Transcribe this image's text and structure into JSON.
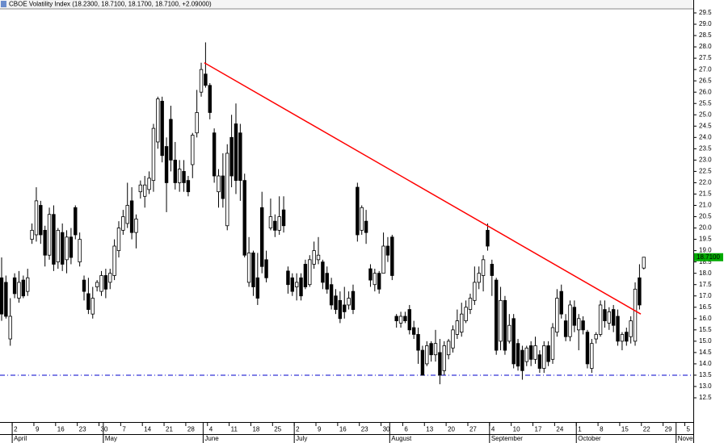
{
  "chart_data": {
    "type": "candlestick",
    "title": "CBOE Volatility Index (18.2300, 18.7100, 18.1700, 18.7100, +2.09000)",
    "open": [
      17.8,
      17.6,
      15.1,
      17.8,
      16.9,
      17.7,
      17.2,
      19.5,
      19.7,
      21.0,
      19.9,
      18.8,
      20.6,
      18.5,
      19.8,
      18.6,
      19.6,
      20.9,
      18.5,
      17.7,
      17.1,
      16.2,
      17.4,
      17.2,
      17.9,
      17.6,
      17.9,
      19.0,
      19.9,
      20.2,
      21.2,
      19.8,
      21.6,
      21.4,
      21.7,
      22.1,
      23.8,
      25.6,
      23.6,
      24.8,
      23.0,
      22.0,
      22.5,
      22.1,
      22.8,
      24.2,
      26.0,
      26.8,
      26.3,
      24.2,
      21.6,
      22.3,
      20.1,
      24.0,
      24.6,
      24.2,
      22.1,
      17.6,
      18.9,
      17.8,
      20.9,
      18.6,
      20.0,
      20.3,
      19.9,
      20.8,
      18.1,
      17.8,
      17.4,
      17.8,
      18.4,
      17.5,
      18.4,
      18.6,
      18.5,
      18.0,
      17.5,
      17.0,
      16.8,
      16.6,
      16.6,
      17.2,
      21.8,
      19.9,
      20.3,
      18.2,
      17.5,
      18.0,
      18.0,
      19.2,
      19.6,
      16.1,
      15.8,
      16.1,
      16.4,
      15.6,
      15.3,
      14.6,
      14.0,
      14.9,
      14.4,
      14.5,
      13.7,
      14.4,
      14.7,
      15.3,
      15.4,
      15.9,
      16.4,
      16.8,
      17.6,
      17.9,
      19.9,
      18.4,
      17.7,
      15.0,
      16.8,
      15.0,
      16.0,
      14.9,
      14.6,
      14.1,
      14.8,
      14.2,
      14.4,
      13.8,
      14.8,
      14.2,
      15.4,
      17.2,
      15.9,
      15.2,
      16.5,
      15.5,
      15.9,
      15.4,
      13.8,
      15.1,
      15.3,
      16.4,
      15.8,
      16.4,
      16.1,
      15.0,
      15.4,
      15.2,
      15.0,
      17.8,
      18.23
    ],
    "high": [
      18.7,
      17.9,
      16.9,
      18.0,
      18.1,
      17.9,
      18.2,
      20.2,
      21.8,
      21.2,
      20.1,
      20.9,
      21.0,
      20.0,
      20.2,
      19.9,
      20.0,
      21.0,
      19.8,
      17.9,
      17.8,
      17.4,
      17.7,
      18.1,
      18.2,
      18.2,
      19.5,
      20.3,
      20.8,
      22.0,
      21.8,
      20.6,
      22.1,
      22.3,
      22.5,
      24.6,
      25.8,
      25.8,
      24.0,
      25.4,
      23.8,
      23.0,
      23.0,
      22.3,
      24.2,
      26.1,
      27.3,
      28.2,
      26.4,
      24.4,
      22.6,
      23.3,
      23.7,
      25.0,
      25.5,
      24.6,
      22.4,
      19.6,
      19.0,
      18.9,
      21.6,
      19.0,
      21.3,
      20.6,
      21.4,
      21.4,
      18.3,
      18.0,
      18.0,
      18.0,
      18.6,
      18.8,
      19.4,
      19.6,
      18.6,
      18.3,
      17.8,
      17.3,
      17.2,
      17.4,
      17.2,
      17.5,
      22.0,
      21.0,
      20.8,
      18.4,
      18.2,
      18.1,
      19.8,
      19.6,
      19.7,
      16.2,
      16.3,
      16.3,
      16.6,
      15.9,
      15.6,
      14.8,
      15.0,
      15.0,
      15.5,
      15.1,
      15.0,
      15.1,
      15.7,
      16.4,
      16.7,
      16.8,
      17.1,
      18.3,
      18.3,
      18.8,
      20.2,
      18.6,
      17.8,
      17.4,
      17.0,
      16.2,
      16.2,
      15.1,
      14.8,
      14.8,
      15.0,
      15.2,
      14.6,
      15.0,
      15.0,
      15.8,
      17.3,
      17.5,
      16.2,
      16.8,
      16.8,
      16.2,
      16.1,
      15.5,
      15.1,
      15.4,
      16.8,
      16.8,
      16.5,
      16.6,
      16.4,
      15.4,
      15.6,
      16.1,
      17.6,
      18.4,
      18.71
    ],
    "low": [
      15.9,
      16.0,
      14.8,
      16.9,
      16.7,
      16.9,
      17.0,
      19.3,
      19.4,
      19.3,
      18.3,
      18.6,
      18.1,
      18.2,
      18.1,
      18.0,
      18.4,
      19.5,
      18.3,
      16.8,
      16.2,
      16.0,
      17.2,
      17.0,
      16.9,
      17.3,
      17.7,
      18.7,
      19.7,
      20.0,
      19.5,
      19.1,
      21.3,
      20.9,
      21.5,
      21.6,
      23.5,
      22.9,
      20.7,
      22.5,
      21.7,
      21.6,
      21.6,
      21.4,
      22.2,
      24.0,
      25.8,
      26.2,
      24.8,
      22.0,
      20.9,
      20.9,
      19.9,
      21.8,
      21.5,
      21.2,
      18.7,
      17.4,
      17.0,
      16.6,
      18.0,
      17.6,
      19.9,
      19.6,
      19.7,
      19.8,
      17.1,
      17.0,
      16.8,
      16.8,
      17.3,
      17.4,
      18.2,
      18.4,
      17.3,
      17.1,
      16.4,
      16.2,
      15.8,
      16.0,
      16.4,
      16.2,
      19.4,
      19.7,
      19.3,
      17.4,
      17.2,
      17.1,
      18.0,
      18.5,
      17.7,
      15.6,
      15.6,
      15.8,
      15.3,
      15.1,
      14.0,
      13.5,
      13.9,
      14.1,
      14.1,
      13.1,
      13.5,
      14.2,
      14.5,
      15.1,
      15.2,
      15.8,
      16.2,
      16.6,
      17.3,
      17.2,
      19.0,
      17.0,
      14.4,
      14.6,
      14.4,
      14.9,
      13.8,
      13.7,
      13.3,
      13.9,
      13.9,
      14.0,
      13.6,
      13.6,
      13.9,
      14.0,
      15.2,
      16.0,
      15.0,
      15.0,
      15.4,
      14.6,
      15.3,
      13.8,
      13.6,
      14.9,
      15.2,
      15.6,
      15.5,
      15.4,
      14.8,
      14.6,
      14.8,
      14.9,
      14.8,
      16.4,
      18.17
    ],
    "close": [
      16.2,
      16.1,
      16.1,
      17.1,
      17.6,
      17.0,
      17.8,
      19.9,
      21.2,
      19.7,
      18.8,
      20.6,
      18.4,
      19.9,
      18.4,
      19.6,
      18.7,
      19.7,
      19.5,
      17.2,
      16.4,
      16.9,
      17.6,
      17.9,
      17.3,
      18.0,
      19.2,
      20.0,
      20.5,
      21.0,
      19.8,
      20.4,
      21.9,
      21.9,
      22.2,
      24.4,
      25.7,
      23.2,
      22.0,
      23.0,
      22.0,
      22.6,
      22.0,
      21.6,
      24.1,
      25.1,
      27.0,
      26.3,
      25.1,
      22.3,
      22.3,
      21.3,
      23.3,
      22.3,
      22.1,
      22.1,
      18.8,
      18.9,
      17.4,
      16.9,
      18.3,
      17.8,
      20.5,
      19.9,
      20.5,
      20.1,
      17.5,
      17.2,
      17.6,
      17.0,
      17.4,
      18.6,
      19.0,
      18.8,
      17.6,
      17.3,
      16.6,
      16.4,
      16.0,
      16.3,
      16.9,
      16.4,
      19.7,
      20.9,
      19.8,
      17.7,
      18.0,
      17.3,
      19.2,
      18.8,
      17.9,
      15.9,
      16.1,
      15.9,
      15.5,
      15.3,
      14.6,
      13.5,
      14.8,
      14.4,
      14.9,
      13.5,
      14.8,
      15.0,
      15.5,
      15.9,
      16.2,
      16.5,
      16.9,
      17.6,
      18.0,
      18.6,
      19.2,
      17.9,
      14.6,
      16.8,
      14.6,
      15.7,
      14.0,
      13.9,
      13.7,
      14.7,
      14.2,
      14.8,
      13.8,
      14.8,
      14.1,
      15.6,
      16.9,
      16.2,
      15.2,
      16.6,
      15.7,
      16.0,
      15.5,
      14.0,
      14.9,
      15.3,
      16.6,
      15.9,
      16.3,
      15.7,
      15.0,
      15.3,
      15.0,
      15.9,
      17.3,
      16.6,
      18.71
    ],
    "up_color": "#ffffff",
    "down_color": "#000000",
    "xlim": [
      -0.37,
      159.4
    ],
    "xticks": [
      {
        "value": 3,
        "label": "2"
      },
      {
        "value": 8,
        "label": "9"
      },
      {
        "value": 13,
        "label": "16"
      },
      {
        "value": 18,
        "label": "23"
      },
      {
        "value": 23,
        "label": "30"
      },
      {
        "value": 28,
        "label": "7"
      },
      {
        "value": 33,
        "label": "14"
      },
      {
        "value": 38,
        "label": "21"
      },
      {
        "value": 43,
        "label": "28"
      },
      {
        "value": 48,
        "label": "4"
      },
      {
        "value": 53,
        "label": "11"
      },
      {
        "value": 58,
        "label": "18"
      },
      {
        "value": 63,
        "label": "25"
      },
      {
        "value": 68,
        "label": "2"
      },
      {
        "value": 73,
        "label": "9"
      },
      {
        "value": 78,
        "label": "16"
      },
      {
        "value": 83,
        "label": "23"
      },
      {
        "value": 88,
        "label": "30"
      },
      {
        "value": 93,
        "label": "6"
      },
      {
        "value": 98,
        "label": "13"
      },
      {
        "value": 103,
        "label": "20"
      },
      {
        "value": 108,
        "label": "27"
      },
      {
        "value": 113,
        "label": "4"
      },
      {
        "value": 118,
        "label": "10"
      },
      {
        "value": 123,
        "label": "17"
      },
      {
        "value": 128,
        "label": "24"
      },
      {
        "value": 133,
        "label": "1"
      },
      {
        "value": 138,
        "label": "8"
      },
      {
        "value": 143,
        "label": "15"
      },
      {
        "value": 148,
        "label": "22"
      },
      {
        "value": 153,
        "label": "29"
      },
      {
        "value": 158,
        "label": "5"
      }
    ],
    "month_ticks": [
      {
        "value": 3,
        "label": "April"
      },
      {
        "value": 24,
        "label": "May"
      },
      {
        "value": 47,
        "label": "June"
      },
      {
        "value": 68,
        "label": "July"
      },
      {
        "value": 90,
        "label": "August"
      },
      {
        "value": 113,
        "label": "September"
      },
      {
        "value": 133,
        "label": "October"
      },
      {
        "value": 156,
        "label": "November"
      }
    ],
    "ylim": [
      12.5,
      29.5
    ],
    "yticks": [
      {
        "value": 12.5,
        "label": "12.5"
      },
      {
        "value": 13,
        "label": "13.0"
      },
      13.5,
      {
        "value": 14,
        "label": "14.0"
      },
      14.5,
      {
        "value": 15,
        "label": "15.0"
      },
      15.5,
      {
        "value": 16,
        "label": "16.0"
      },
      16.5,
      {
        "value": 17,
        "label": "17.0"
      },
      17.5,
      {
        "value": 18,
        "label": "18.0"
      },
      18.5,
      {
        "value": 19,
        "label": "19.0"
      },
      19.5,
      {
        "value": 20,
        "label": "20.0"
      },
      20.5,
      {
        "value": 21,
        "label": "21.0"
      },
      21.5,
      {
        "value": 22,
        "label": "22.0"
      },
      22.5,
      {
        "value": 23,
        "label": "23.0"
      },
      23.5,
      {
        "value": 24,
        "label": "24.0"
      },
      24.5,
      {
        "value": 25,
        "label": "25.0"
      },
      25.5,
      {
        "value": 26,
        "label": "26.0"
      },
      26.5,
      {
        "value": 27,
        "label": "27.0"
      },
      27.5,
      {
        "value": 28,
        "label": "28.0"
      },
      28.5,
      {
        "value": 29,
        "label": "29.0"
      },
      29.5
    ],
    "trendline": {
      "x": [
        46.7,
        147.3
      ],
      "y": [
        27.3,
        16.2
      ],
      "color": "#ff0000"
    },
    "support_line": {
      "value": 13.5,
      "color": "#0000cc"
    },
    "last_label": {
      "value": 18.71,
      "label": "18.7100",
      "color": "#00aa00"
    }
  }
}
